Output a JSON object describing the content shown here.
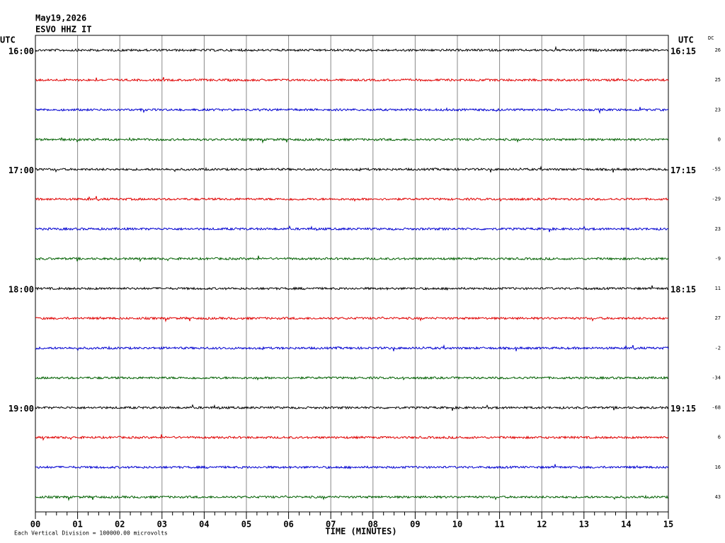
{
  "header": {
    "date": "May19,2026",
    "station": "ESVO HHZ IT"
  },
  "left_axis": {
    "unit": "UTC",
    "labels": [
      "16:00",
      "17:00",
      "18:00",
      "19:00"
    ]
  },
  "right_axis": {
    "unit": "UTC",
    "labels": [
      "16:15",
      "17:15",
      "18:15",
      "19:15"
    ]
  },
  "dc": {
    "heading": "DC",
    "values": [
      "26",
      "25",
      "23",
      "0",
      "-55",
      "-29",
      "23",
      "-9",
      "11",
      "27",
      "-2",
      "-34",
      "-68",
      "6",
      "16",
      "43"
    ]
  },
  "x_axis": {
    "ticks": [
      "00",
      "01",
      "02",
      "03",
      "04",
      "05",
      "06",
      "07",
      "08",
      "09",
      "10",
      "11",
      "12",
      "13",
      "14",
      "15"
    ],
    "label": "TIME (MINUTES)"
  },
  "footnote": "Each Vertical Division = 100000.00 microvolts"
}
